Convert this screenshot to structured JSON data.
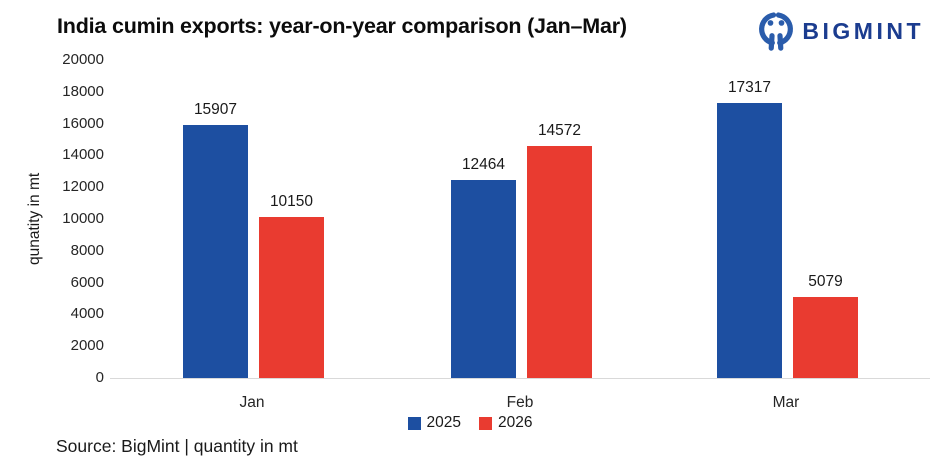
{
  "title": "India cumin exports: year-on-year comparison (Jan–Mar)",
  "brand": {
    "name": "BIGMINT",
    "icon": "bigmint-person-icon",
    "text_color": "#1b3c8f",
    "icon_color": "#2a5cab"
  },
  "chart_data": {
    "type": "bar",
    "categories": [
      "Jan",
      "Feb",
      "Mar"
    ],
    "series": [
      {
        "name": "2025",
        "color": "#1d4fa1",
        "values": [
          15907,
          12464,
          17317
        ]
      },
      {
        "name": "2026",
        "color": "#e93b30",
        "values": [
          10150,
          14572,
          5079
        ]
      }
    ],
    "title": "India cumin exports: year-on-year comparison (Jan–Mar)",
    "xlabel": "",
    "ylabel": "qunatity in mt",
    "ylim": [
      0,
      20000
    ],
    "ytick_step": 2000,
    "yticks": [
      0,
      2000,
      4000,
      6000,
      8000,
      10000,
      12000,
      14000,
      16000,
      18000,
      20000
    ],
    "grid": false,
    "legend_position": "bottom",
    "value_labels": true,
    "axis_line_color": "#d9d9d9"
  },
  "footer": {
    "source_note": "Source: BigMint | quantity in mt"
  }
}
